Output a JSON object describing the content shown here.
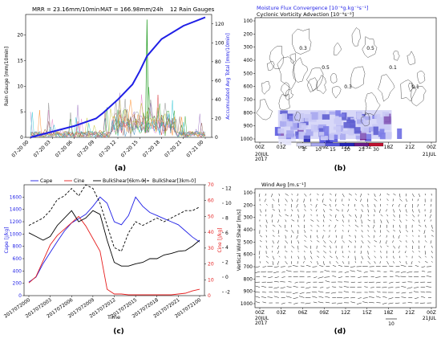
{
  "panel_labels": [
    "(a)",
    "(b)",
    "(c)",
    "(d)"
  ],
  "chart_data": [
    {
      "type": "line",
      "panel": "(a)",
      "header": {
        "mrr": "MRR = 23.16mm/10min",
        "mat": "MAT = 166.98mm/24h",
        "gauges": "12 Rain Gauges"
      },
      "ylabel": "Rain Gauge [mm/10min]",
      "ylabel_right": "Accumulated Avg Total [mm/10min]",
      "ylim": [
        0,
        24
      ],
      "ylim_right": [
        0,
        130
      ],
      "yticks": [
        "0",
        "5",
        "10",
        "15",
        "20"
      ],
      "yticks_right": [
        "0",
        "20",
        "40",
        "60",
        "80",
        "100",
        "120"
      ],
      "xticks": [
        "07-20 00",
        "07-20 03",
        "07-20 06",
        "07-20 09",
        "07-20 12",
        "07-20 15",
        "07-20 18",
        "07-20 21",
        "07-21 00"
      ],
      "accumulated_avg": {
        "x": [
          0,
          3,
          6,
          9,
          10,
          12,
          14,
          15,
          16,
          18,
          21,
          24
        ],
        "y": [
          0,
          6,
          12,
          20,
          26,
          40,
          56,
          70,
          86,
          104,
          118,
          127
        ],
        "color": "#1f1fe6"
      },
      "gauge_peak": {
        "x": 16,
        "y": 23,
        "color": "#2ca02c"
      },
      "gauge_colors": [
        "#1f77b4",
        "#ff7f0e",
        "#2ca02c",
        "#d62728",
        "#9467bd",
        "#8c564b",
        "#e377c2",
        "#7f7f7f",
        "#bcbd22",
        "#17becf"
      ]
    },
    {
      "type": "heatmap",
      "panel": "(b)",
      "title_1": "Moisture Flux Convergence [10⁻⁶g.kg⁻¹s⁻¹]",
      "title_2": "Cyclonic Vorticity Advection [10⁻⁹s⁻²]",
      "yticks": [
        "100",
        "200",
        "300",
        "400",
        "500",
        "600",
        "700",
        "800",
        "900",
        "1000"
      ],
      "xticks": [
        "00Z",
        "03Z",
        "06Z",
        "09Z",
        "12Z",
        "15Z",
        "18Z",
        "21Z",
        "00Z"
      ],
      "x_date_left": [
        "20JUL",
        "2017"
      ],
      "x_date_right": "21JUL",
      "colorbar_ticks": [
        "5",
        "10",
        "15",
        "20",
        "25",
        "30"
      ],
      "colorbar_colors": [
        "#e4e4fb",
        "#a8a8f0",
        "#5a5ae0",
        "#2424b8",
        "#6a1a8a",
        "#c01030"
      ],
      "contour_labels": [
        "0.3",
        "0.5",
        "0.3",
        "0.5",
        "0.1",
        "0.1"
      ]
    },
    {
      "type": "line",
      "panel": "(c)",
      "legend": [
        "Cape",
        "Cine",
        "BulkShear[6km-0]",
        "BulkShear[3km-0]"
      ],
      "xlabel": "Time",
      "ylabel": "Cape [J/kg]",
      "ylabel_right_1": "Cine [J/kg]",
      "ylabel_right_2": "Vertical Wind Shear [m/s]",
      "ylim": [
        0,
        1800
      ],
      "yticks": [
        "0",
        "200",
        "400",
        "600",
        "800",
        "1000",
        "1200",
        "1400",
        "1600"
      ],
      "yticks_cine": [
        "0",
        "10",
        "20",
        "30",
        "40",
        "50",
        "60",
        "70"
      ],
      "yticks_shear": [
        "-2",
        "0",
        "2",
        "4",
        "6",
        "8",
        "10",
        "12"
      ],
      "xticks": [
        "2017072000",
        "2017072003",
        "2017072006",
        "2017072009",
        "2017072012",
        "2017072015",
        "2017072018",
        "2017072021",
        "2017072100"
      ],
      "series": [
        {
          "name": "Cape",
          "color": "#1f1fe6",
          "x": [
            0,
            1,
            2,
            3,
            4,
            5,
            6,
            7,
            8,
            9,
            10,
            11,
            12,
            13,
            14,
            15,
            16,
            17,
            18,
            19,
            20,
            21,
            22,
            23,
            24
          ],
          "values": [
            220,
            300,
            520,
            700,
            880,
            1050,
            1180,
            1250,
            1320,
            1450,
            1600,
            1500,
            1200,
            1150,
            1300,
            1600,
            1450,
            1350,
            1300,
            1250,
            1200,
            1150,
            1050,
            950,
            870
          ]
        },
        {
          "name": "Cine",
          "color": "#e61f1f",
          "x": [
            0,
            1,
            2,
            3,
            4,
            5,
            6,
            7,
            8,
            9,
            10,
            11,
            12,
            13,
            14,
            15,
            16,
            17,
            18,
            19,
            20,
            21,
            22,
            23,
            24
          ],
          "values": [
            8,
            12,
            22,
            32,
            38,
            42,
            46,
            50,
            44,
            36,
            28,
            4,
            1,
            1,
            0.5,
            0.5,
            0.5,
            0.5,
            0.5,
            0.5,
            0.5,
            1,
            1.5,
            3,
            4
          ]
        },
        {
          "name": "BulkShear[6km-0]",
          "color": "#000000",
          "x": [
            0,
            1,
            2,
            3,
            4,
            5,
            6,
            7,
            8,
            9,
            10,
            11,
            12,
            13,
            14,
            15,
            16,
            17,
            18,
            19,
            20,
            21,
            22,
            23,
            24
          ],
          "values": [
            6,
            5.5,
            5,
            5.5,
            7,
            8,
            9,
            7.5,
            8,
            9,
            8.5,
            5,
            2,
            1.5,
            1.5,
            1.8,
            2,
            2.5,
            2.5,
            3,
            3.2,
            3.5,
            3.6,
            4.2,
            5
          ]
        },
        {
          "name": "BulkShear[3km-0]",
          "color": "#000000",
          "dash": "3,2",
          "x": [
            0,
            1,
            2,
            3,
            4,
            5,
            6,
            7,
            8,
            9,
            10,
            11,
            12,
            13,
            14,
            15,
            16,
            17,
            18,
            19,
            20,
            21,
            22,
            23,
            24
          ],
          "values": [
            7,
            7.5,
            8,
            9,
            10.5,
            11,
            12,
            11,
            12.5,
            12,
            10,
            7,
            4,
            3.5,
            6,
            7.5,
            7,
            7.5,
            8,
            7.5,
            8,
            8.5,
            9,
            9,
            9.5
          ]
        }
      ]
    },
    {
      "type": "vector",
      "panel": "(d)",
      "title": "Wind Avg [m.s⁻¹]",
      "yticks": [
        "100",
        "200",
        "300",
        "400",
        "500",
        "600",
        "700",
        "800",
        "900",
        "1000"
      ],
      "xticks": [
        "00Z",
        "03Z",
        "06Z",
        "09Z",
        "12Z",
        "15Z",
        "18Z",
        "21Z",
        "00Z"
      ],
      "x_date_left": [
        "20JUL",
        "2017"
      ],
      "x_date_right": "21JUL",
      "ref_vector_label": "10"
    }
  ]
}
